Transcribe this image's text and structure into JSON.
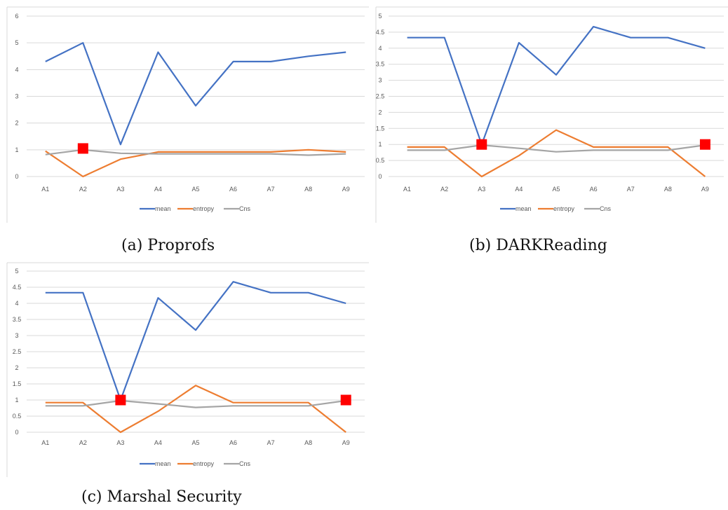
{
  "captions": [
    "(a) Proprofs",
    "(b) DARKReading",
    "(c) Marshal Security"
  ],
  "colors": {
    "mean": "#4472C4",
    "entropy": "#ED7D31",
    "Cns": "#A5A5A5",
    "marker": "#FF0000"
  },
  "chart_data": [
    {
      "type": "line",
      "categories": [
        "A1",
        "A2",
        "A3",
        "A4",
        "A5",
        "A6",
        "A7",
        "A8",
        "A9"
      ],
      "ylim": [
        0,
        6
      ],
      "yticks": [
        "0",
        "1",
        "2",
        "3",
        "4",
        "5",
        "6"
      ],
      "grid": true,
      "legend_position": "bottom",
      "series": [
        {
          "name": "mean",
          "values": [
            4.3,
            5.0,
            1.2,
            4.65,
            2.65,
            4.3,
            4.3,
            4.5,
            4.65
          ]
        },
        {
          "name": "entropy",
          "values": [
            0.95,
            0.0,
            0.65,
            0.92,
            0.92,
            0.92,
            0.92,
            1.0,
            0.92
          ]
        },
        {
          "name": "Cns",
          "values": [
            0.82,
            1.0,
            0.87,
            0.85,
            0.85,
            0.85,
            0.85,
            0.8,
            0.85
          ]
        }
      ],
      "markers": [
        {
          "category": "A2",
          "value": 1.05
        }
      ]
    },
    {
      "type": "line",
      "categories": [
        "A1",
        "A2",
        "A3",
        "A4",
        "A5",
        "A6",
        "A7",
        "A8",
        "A9"
      ],
      "ylim": [
        0,
        5
      ],
      "yticks": [
        "0",
        "0.5",
        "1",
        "1.5",
        "2",
        "2.5",
        "3",
        "3.5",
        "4",
        "4.5",
        "5"
      ],
      "grid": true,
      "legend_position": "bottom",
      "series": [
        {
          "name": "mean",
          "values": [
            4.33,
            4.33,
            1.0,
            4.17,
            3.17,
            4.67,
            4.33,
            4.33,
            4.0
          ]
        },
        {
          "name": "entropy",
          "values": [
            0.92,
            0.92,
            0.0,
            0.65,
            1.45,
            0.92,
            0.92,
            0.92,
            0.0
          ]
        },
        {
          "name": "Cns",
          "values": [
            0.82,
            0.82,
            0.98,
            0.88,
            0.77,
            0.82,
            0.82,
            0.82,
            0.98
          ]
        }
      ],
      "markers": [
        {
          "category": "A3",
          "value": 1.0
        },
        {
          "category": "A9",
          "value": 1.0
        }
      ]
    },
    {
      "type": "line",
      "categories": [
        "A1",
        "A2",
        "A3",
        "A4",
        "A5",
        "A6",
        "A7",
        "A8",
        "A9"
      ],
      "ylim": [
        0,
        5
      ],
      "yticks": [
        "0",
        "0.5",
        "1",
        "1.5",
        "2",
        "2.5",
        "3",
        "3.5",
        "4",
        "4.5",
        "5"
      ],
      "grid": true,
      "legend_position": "bottom",
      "series": [
        {
          "name": "mean",
          "values": [
            4.33,
            4.33,
            1.0,
            4.17,
            3.17,
            4.67,
            4.33,
            4.33,
            4.0
          ]
        },
        {
          "name": "entropy",
          "values": [
            0.92,
            0.92,
            0.0,
            0.65,
            1.45,
            0.92,
            0.92,
            0.92,
            0.0
          ]
        },
        {
          "name": "Cns",
          "values": [
            0.82,
            0.82,
            0.98,
            0.88,
            0.77,
            0.82,
            0.82,
            0.82,
            0.98
          ]
        }
      ],
      "markers": [
        {
          "category": "A3",
          "value": 1.0
        },
        {
          "category": "A9",
          "value": 1.0
        }
      ]
    }
  ]
}
